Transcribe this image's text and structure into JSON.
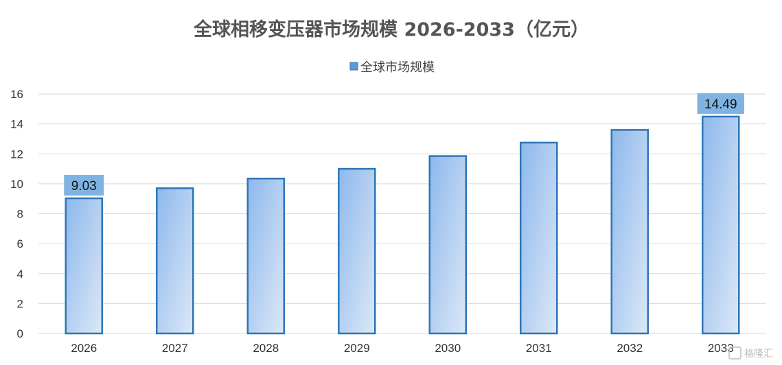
{
  "chart_data": {
    "type": "bar",
    "title": "全球相移变压器市场规模 2026-2033（亿元）",
    "xlabel": "",
    "ylabel": "",
    "categories": [
      "2026",
      "2027",
      "2028",
      "2029",
      "2030",
      "2031",
      "2032",
      "2033"
    ],
    "series": [
      {
        "name": "全球市场规模",
        "values": [
          9.03,
          9.7,
          10.35,
          11.0,
          11.85,
          12.75,
          13.6,
          14.49
        ],
        "data_labels": [
          "9.03",
          "",
          "",
          "",
          "",
          "",
          "",
          "14.49"
        ]
      }
    ],
    "ylim": [
      0,
      16
    ],
    "yticks": [
      0,
      2,
      4,
      6,
      8,
      10,
      12,
      14,
      16
    ],
    "grid": true,
    "legend_position": "top-center",
    "colors": {
      "bar_stroke": "#2e75b6",
      "bar_fill_top": "#8db8ec",
      "bar_fill_bottom": "#dce8f7",
      "label_box": "#7fb4e2",
      "legend_swatch": "#5b9bd5"
    }
  },
  "watermark": {
    "text": "格隆汇"
  }
}
